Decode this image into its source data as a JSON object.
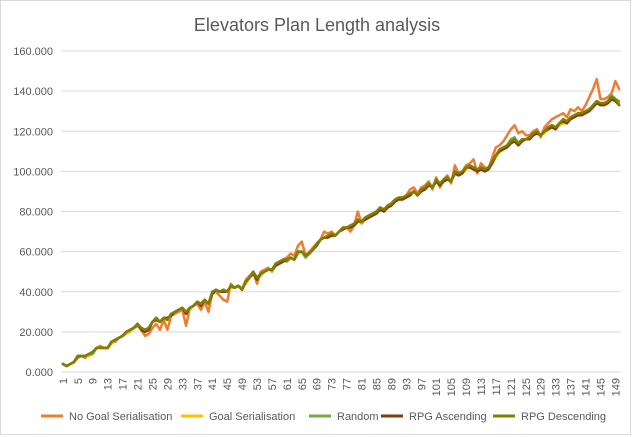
{
  "chart_data": {
    "type": "line",
    "title": "Elevators Plan Length analysis",
    "xlabel": "",
    "ylabel": "",
    "ylim": [
      0,
      160
    ],
    "y_ticks": [
      0,
      20,
      40,
      60,
      80,
      100,
      120,
      140,
      160
    ],
    "y_tick_labels": [
      "0.000",
      "20.000",
      "40.000",
      "60.000",
      "80.000",
      "100.000",
      "120.000",
      "140.000",
      "160.000"
    ],
    "x_range": [
      1,
      150
    ],
    "x_tick_labels": [
      "1",
      "5",
      "9",
      "13",
      "17",
      "21",
      "25",
      "29",
      "33",
      "37",
      "41",
      "45",
      "49",
      "53",
      "57",
      "61",
      "65",
      "69",
      "73",
      "77",
      "81",
      "85",
      "89",
      "93",
      "97",
      "101",
      "105",
      "109",
      "113",
      "117",
      "121",
      "125",
      "129",
      "133",
      "137",
      "141",
      "145",
      "149"
    ],
    "grid": "horizontal",
    "legend_position": "bottom",
    "series": [
      {
        "name": "No Goal Serialisation",
        "color": "#ED7D31",
        "values": [
          4,
          3,
          4,
          5,
          7,
          8,
          7,
          9,
          10,
          12,
          13,
          12,
          12,
          15,
          15,
          17,
          18,
          20,
          21,
          22,
          24,
          21,
          18,
          19,
          22,
          24,
          21,
          26,
          21,
          28,
          29,
          30,
          31,
          23,
          32,
          33,
          34,
          31,
          35,
          30,
          39,
          40,
          38,
          36,
          35,
          44,
          42,
          43,
          41,
          46,
          48,
          50,
          44,
          50,
          51,
          52,
          50,
          53,
          55,
          56,
          57,
          59,
          58,
          63,
          65,
          58,
          60,
          62,
          64,
          66,
          70,
          69,
          70,
          68,
          70,
          71,
          72,
          70,
          73,
          80,
          74,
          76,
          78,
          79,
          80,
          82,
          80,
          83,
          84,
          86,
          87,
          86,
          88,
          91,
          92,
          89,
          92,
          93,
          95,
          91,
          97,
          92,
          96,
          98,
          94,
          103,
          99,
          100,
          103,
          104,
          106,
          99,
          104,
          102,
          101,
          107,
          112,
          113,
          115,
          118,
          121,
          123,
          119,
          120,
          118,
          118,
          120,
          121,
          117,
          122,
          124,
          126,
          127,
          128,
          129,
          127,
          131,
          130,
          132,
          130,
          133,
          137,
          141,
          146,
          136,
          136,
          137,
          139,
          145,
          141
        ]
      },
      {
        "name": "Goal Serialisation",
        "color": "#FFC000",
        "values": [
          4,
          3,
          4,
          5,
          8,
          8,
          8,
          8,
          9,
          12,
          12,
          12,
          12,
          14,
          16,
          17,
          18,
          19,
          20,
          22,
          23,
          21,
          21,
          22,
          25,
          26,
          25,
          27,
          26,
          28,
          30,
          31,
          32,
          30,
          31,
          33,
          35,
          34,
          36,
          34,
          39,
          41,
          40,
          40,
          40,
          42,
          42,
          43,
          42,
          44,
          47,
          49,
          46,
          48,
          50,
          51,
          51,
          53,
          54,
          55,
          56,
          57,
          56,
          59,
          60,
          58,
          59,
          61,
          63,
          66,
          67,
          67,
          68,
          68,
          70,
          71,
          72,
          72,
          73,
          75,
          75,
          76,
          77,
          78,
          79,
          81,
          80,
          82,
          83,
          85,
          86,
          86,
          87,
          88,
          90,
          88,
          90,
          91,
          93,
          92,
          95,
          93,
          95,
          96,
          95,
          99,
          98,
          99,
          101,
          102,
          101,
          100,
          101,
          100,
          101,
          104,
          107,
          110,
          111,
          112,
          114,
          115,
          113,
          115,
          116,
          116,
          118,
          119,
          118,
          119,
          121,
          122,
          121,
          123,
          124,
          124,
          126,
          127,
          128,
          128,
          129,
          130,
          132,
          134,
          133,
          133,
          134,
          136,
          135,
          134
        ]
      },
      {
        "name": "Random",
        "color": "#70AD47",
        "values": [
          4,
          3,
          4,
          5,
          8,
          8,
          8,
          9,
          9,
          12,
          12,
          12,
          12,
          15,
          16,
          17,
          18,
          20,
          21,
          22,
          23,
          22,
          21,
          22,
          25,
          27,
          25,
          27,
          26,
          29,
          30,
          31,
          32,
          30,
          32,
          33,
          35,
          34,
          36,
          34,
          39,
          41,
          40,
          41,
          40,
          43,
          42,
          43,
          41,
          45,
          47,
          50,
          47,
          49,
          50,
          51,
          51,
          54,
          55,
          56,
          55,
          57,
          56,
          60,
          60,
          57,
          59,
          61,
          64,
          66,
          67,
          68,
          69,
          68,
          70,
          72,
          72,
          73,
          74,
          76,
          75,
          77,
          78,
          79,
          80,
          82,
          81,
          83,
          84,
          86,
          87,
          87,
          88,
          89,
          90,
          88,
          91,
          92,
          94,
          92,
          96,
          94,
          96,
          97,
          95,
          100,
          99,
          100,
          102,
          103,
          102,
          101,
          102,
          101,
          102,
          105,
          108,
          111,
          112,
          113,
          116,
          117,
          114,
          116,
          116,
          117,
          119,
          120,
          118,
          120,
          122,
          123,
          122,
          124,
          126,
          125,
          127,
          128,
          129,
          129,
          130,
          131,
          133,
          135,
          134,
          134,
          135,
          138,
          136,
          135
        ]
      },
      {
        "name": "RPG Ascending",
        "color": "#843C0C",
        "values": [
          4,
          3,
          4,
          5,
          8,
          8,
          8,
          9,
          10,
          12,
          12,
          12,
          12,
          15,
          16,
          17,
          18,
          20,
          21,
          22,
          24,
          21,
          20,
          21,
          25,
          26,
          25,
          27,
          27,
          28,
          30,
          31,
          32,
          29,
          32,
          33,
          35,
          33,
          36,
          34,
          39,
          41,
          40,
          40,
          40,
          43,
          42,
          43,
          41,
          45,
          47,
          49,
          46,
          49,
          50,
          51,
          51,
          53,
          54,
          55,
          56,
          57,
          56,
          60,
          60,
          58,
          59,
          61,
          63,
          66,
          67,
          67,
          68,
          68,
          70,
          71,
          72,
          72,
          73,
          75,
          75,
          76,
          77,
          78,
          79,
          81,
          80,
          82,
          83,
          85,
          86,
          86,
          87,
          88,
          90,
          88,
          90,
          91,
          93,
          92,
          95,
          93,
          95,
          96,
          95,
          99,
          98,
          99,
          102,
          102,
          101,
          100,
          101,
          100,
          101,
          104,
          108,
          110,
          111,
          112,
          114,
          115,
          113,
          115,
          116,
          116,
          118,
          119,
          118,
          120,
          121,
          122,
          121,
          124,
          125,
          124,
          126,
          127,
          128,
          128,
          129,
          130,
          132,
          134,
          133,
          133,
          134,
          136,
          135,
          133
        ]
      },
      {
        "name": "RPG Descending",
        "color": "#7F7F00",
        "values": [
          4,
          3,
          4,
          5,
          8,
          8,
          8,
          9,
          10,
          12,
          12,
          12,
          12,
          15,
          16,
          17,
          18,
          20,
          21,
          22,
          24,
          22,
          21,
          22,
          25,
          27,
          25,
          27,
          26,
          29,
          30,
          31,
          32,
          30,
          32,
          33,
          35,
          34,
          36,
          34,
          40,
          41,
          40,
          41,
          40,
          43,
          42,
          43,
          41,
          45,
          47,
          50,
          47,
          49,
          50,
          51,
          51,
          54,
          55,
          56,
          56,
          57,
          56,
          60,
          60,
          58,
          59,
          61,
          64,
          66,
          67,
          68,
          69,
          68,
          70,
          72,
          72,
          73,
          74,
          76,
          75,
          77,
          78,
          79,
          80,
          82,
          81,
          83,
          84,
          86,
          87,
          87,
          88,
          89,
          90,
          88,
          91,
          92,
          94,
          92,
          96,
          94,
          96,
          97,
          95,
          100,
          99,
          100,
          102,
          103,
          102,
          101,
          102,
          101,
          102,
          105,
          108,
          111,
          112,
          113,
          115,
          116,
          114,
          116,
          116,
          117,
          119,
          120,
          118,
          120,
          122,
          123,
          122,
          124,
          126,
          125,
          127,
          128,
          129,
          129,
          130,
          131,
          133,
          135,
          134,
          134,
          135,
          137,
          136,
          133
        ]
      }
    ]
  }
}
